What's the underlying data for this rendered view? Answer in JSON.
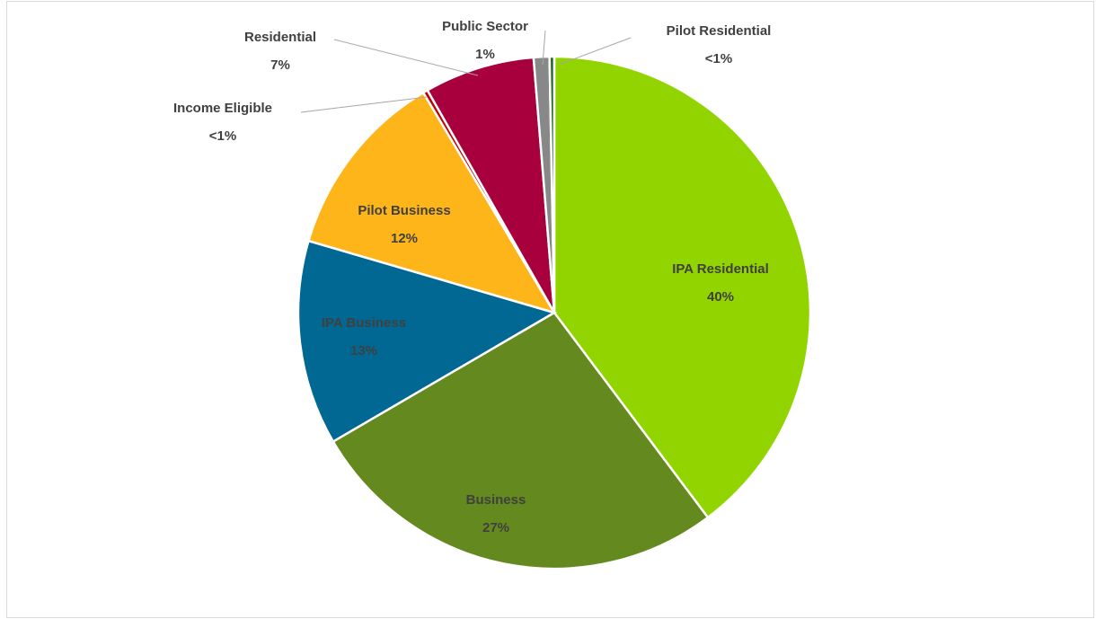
{
  "chart_data": {
    "type": "pie",
    "categories": [
      "IPA Residential",
      "Business",
      "IPA Business",
      "Pilot Business",
      "Income Eligible",
      "Residential",
      "Public Sector",
      "Pilot Residential"
    ],
    "values": [
      40,
      27,
      13,
      12,
      0.3,
      7,
      1,
      0.3
    ],
    "value_labels": [
      "40%",
      "27%",
      "13%",
      "12%",
      "<1%",
      "7%",
      "1%",
      "<1%"
    ],
    "colors": [
      "#92d400",
      "#64891e",
      "#006892",
      "#fdb51a",
      "#c00000",
      "#a8003c",
      "#888888",
      "#2e6b2e"
    ]
  }
}
